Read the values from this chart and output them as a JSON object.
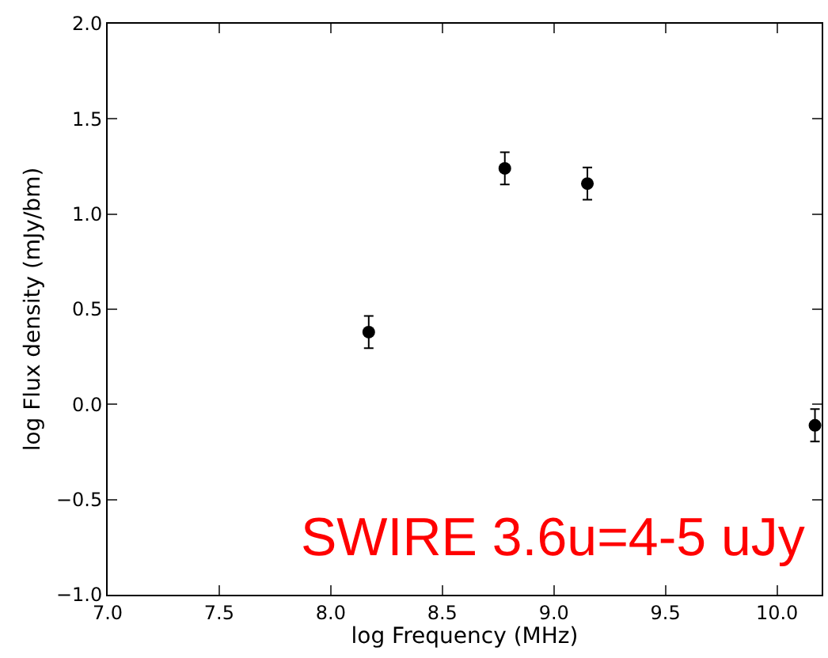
{
  "chart_data": {
    "type": "scatter",
    "xlabel": "log Frequency (MHz)",
    "ylabel": "log Flux density (mJy/bm)",
    "x": [
      8.17,
      8.78,
      9.15,
      10.17
    ],
    "series": [
      {
        "color": "#000000",
        "values": [
          0.38,
          1.24,
          1.16,
          -0.11
        ],
        "errors": [
          0.085,
          0.085,
          0.085,
          0.085
        ]
      }
    ],
    "xlim": [
      7.0,
      10.2
    ],
    "ylim": [
      -1.0,
      2.0
    ],
    "xticks": [
      {
        "value": 7.0,
        "label": "7.0"
      },
      {
        "value": 7.5,
        "label": "7.5"
      },
      {
        "value": 8.0,
        "label": "8.0"
      },
      {
        "value": 8.5,
        "label": "8.5"
      },
      {
        "value": 9.0,
        "label": "9.0"
      },
      {
        "value": 9.5,
        "label": "9.5"
      },
      {
        "value": 10.0,
        "label": "10.0"
      }
    ],
    "yticks": [
      {
        "value": -1.0,
        "label": "−1.0"
      },
      {
        "value": -0.5,
        "label": "−0.5"
      },
      {
        "value": 0.0,
        "label": "0.0"
      },
      {
        "value": 0.5,
        "label": "0.5"
      },
      {
        "value": 1.0,
        "label": "1.0"
      },
      {
        "value": 1.5,
        "label": "1.5"
      },
      {
        "value": 2.0,
        "label": "2.0"
      }
    ],
    "annotations": [
      "SWIRE 3.6u=4-5 uJy"
    ],
    "marker": "circle"
  }
}
